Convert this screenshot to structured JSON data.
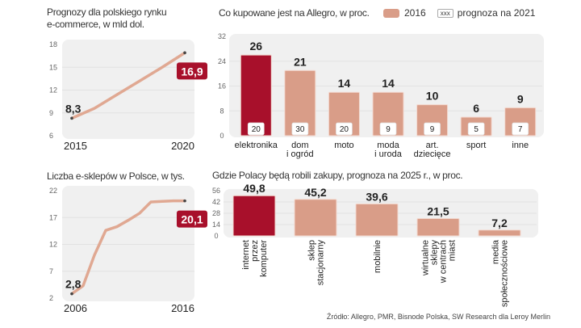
{
  "colors": {
    "highlight": "#a8102b",
    "bar": "#d99d88",
    "line": "#e0a892",
    "panel": "#f0f0f0"
  },
  "legend": {
    "item1": "2016",
    "item2_box": "xxx",
    "item2": "prognoza na 2021"
  },
  "source": "Źródło: Allegro, PMR, Bisnode Polska, SW Research dla Leroy Merlin",
  "chart_data": [
    {
      "type": "line",
      "title": "Prognozy dla polskiego rynku e-commerce, w mld dol.",
      "title_lines": [
        "Prognozy dla polskiego rynku",
        "e-commerce, w mld dol."
      ],
      "x": [
        2015,
        2016,
        2017,
        2018,
        2019,
        2020
      ],
      "values": [
        8.3,
        9.6,
        11.4,
        13.2,
        15.0,
        16.9
      ],
      "x_labels": [
        "2015",
        "2020"
      ],
      "yticks": [
        6,
        9,
        12,
        15,
        18
      ],
      "ylim": [
        6,
        18
      ],
      "start_label": "8,3",
      "end_label": "16,9"
    },
    {
      "type": "line",
      "title": "Liczba e-sklepów w Polsce, w tys.",
      "x": [
        2006,
        2007,
        2008,
        2009,
        2010,
        2011,
        2012,
        2013,
        2014,
        2015,
        2016
      ],
      "values": [
        2.8,
        4.3,
        10.0,
        14.6,
        15.3,
        16.5,
        17.8,
        19.9,
        20.0,
        20.1,
        20.1
      ],
      "x_labels": [
        "2006",
        "2016"
      ],
      "yticks": [
        2,
        7,
        12,
        17,
        22
      ],
      "ylim": [
        2,
        22
      ],
      "start_label": "2,8",
      "end_label": "20,1"
    },
    {
      "type": "bar",
      "title": "Co kupowane jest na Allegro, w proc.",
      "categories": [
        [
          "elektronika"
        ],
        [
          "dom",
          "i ogród"
        ],
        [
          "moto"
        ],
        [
          "moda",
          "i uroda"
        ],
        [
          "art.",
          "dziecięce"
        ],
        [
          "sport"
        ],
        [
          "inne"
        ]
      ],
      "series": [
        {
          "name": "2016",
          "values": [
            26,
            21,
            14,
            14,
            10,
            6,
            9
          ],
          "labels": [
            "26",
            "21",
            "14",
            "14",
            "10",
            "6",
            "9"
          ]
        },
        {
          "name": "prognoza na 2021",
          "values": [
            20,
            30,
            20,
            9,
            9,
            5,
            7
          ],
          "labels": [
            "20",
            "30",
            "20",
            "9",
            "9",
            "5",
            "7"
          ]
        }
      ],
      "highlight_index": 0,
      "yticks": [
        0,
        8,
        16,
        24,
        32
      ],
      "ylim": [
        0,
        32
      ]
    },
    {
      "type": "bar",
      "title": "Gdzie Polacy będą robili zakupy, prognoza na 2025 r., w proc.",
      "categories": [
        [
          "internet",
          "przez",
          "komputer"
        ],
        [
          "sklep",
          "stacjonarny"
        ],
        [
          "mobilnie"
        ],
        [
          "wirtualne",
          "sklepy",
          "w centrach",
          "miast"
        ],
        [
          "media",
          "społecznościowe"
        ]
      ],
      "values": [
        49.8,
        45.2,
        39.6,
        21.5,
        7.2
      ],
      "labels": [
        "49,8",
        "45,2",
        "39,6",
        "21,5",
        "7,2"
      ],
      "highlight_index": 0,
      "yticks": [
        0,
        14,
        28,
        42,
        56
      ],
      "ylim": [
        0,
        56
      ]
    }
  ]
}
